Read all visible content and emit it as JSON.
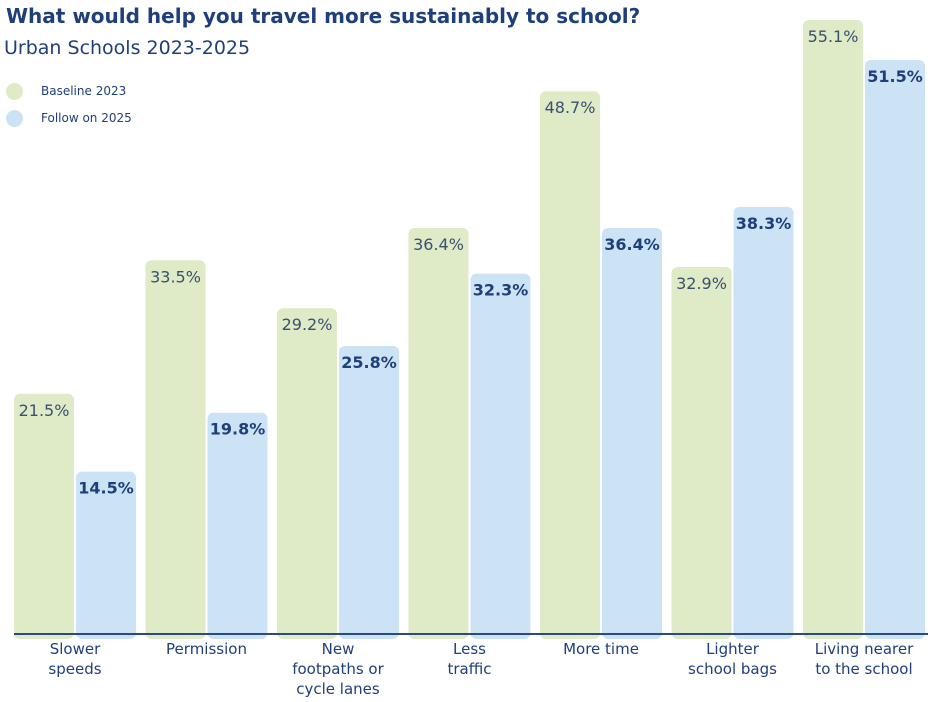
{
  "chart_data": {
    "type": "bar",
    "title": "What would help you travel more sustainably to school?",
    "subtitle": "Urban Schools 2023-2025",
    "categories": [
      [
        "Slower",
        "speeds"
      ],
      [
        "Permission"
      ],
      [
        "New",
        "footpaths or",
        "cycle lanes"
      ],
      [
        "Less",
        "traffic"
      ],
      [
        "More time"
      ],
      [
        "Lighter",
        "school bags"
      ],
      [
        "Living nearer",
        "to the school"
      ]
    ],
    "series": [
      {
        "name": "Baseline 2023",
        "color": "#dfeac6",
        "values": [
          21.5,
          33.5,
          29.2,
          36.4,
          48.7,
          32.9,
          55.1
        ],
        "labels": [
          "21.5%",
          "33.5%",
          "29.2%",
          "36.4%",
          "48.7%",
          "32.9%",
          "55.1%"
        ],
        "label_color": "#3a5070",
        "label_bold": false
      },
      {
        "name": "Follow on 2025",
        "color": "#cbe3f5",
        "values": [
          14.5,
          19.8,
          25.8,
          32.3,
          36.4,
          38.3,
          51.5
        ],
        "labels": [
          "14.5%",
          "19.8%",
          "25.8%",
          "32.3%",
          "36.4%",
          "38.3%",
          "51.5%"
        ],
        "label_color": "#1f3f7a",
        "label_bold": true
      }
    ],
    "ylim": [
      0,
      55.1
    ],
    "grid": false,
    "legend": "top-left",
    "xlabel": "",
    "ylabel": "",
    "axis_color": "#2a4a80"
  }
}
